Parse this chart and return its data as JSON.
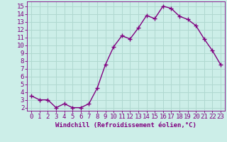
{
  "x": [
    0,
    1,
    2,
    3,
    4,
    5,
    6,
    7,
    8,
    9,
    10,
    11,
    12,
    13,
    14,
    15,
    16,
    17,
    18,
    19,
    20,
    21,
    22,
    23
  ],
  "y": [
    3.5,
    3.0,
    3.0,
    2.0,
    2.5,
    2.0,
    2.0,
    2.5,
    4.5,
    7.5,
    9.8,
    11.2,
    10.8,
    12.2,
    13.8,
    13.4,
    15.0,
    14.7,
    13.7,
    13.3,
    12.5,
    10.8,
    9.3,
    7.5
  ],
  "line_color": "#800080",
  "marker_color": "#800080",
  "bg_color": "#cceee8",
  "grid_color": "#b0d8d0",
  "xlabel": "Windchill (Refroidissement éolien,°C)",
  "ylabel_ticks": [
    2,
    3,
    4,
    5,
    6,
    7,
    8,
    9,
    10,
    11,
    12,
    13,
    14,
    15
  ],
  "ylim": [
    1.6,
    15.6
  ],
  "xlim": [
    -0.5,
    23.5
  ],
  "xtick_labels": [
    "0",
    "1",
    "2",
    "3",
    "4",
    "5",
    "6",
    "7",
    "8",
    "9",
    "10",
    "11",
    "12",
    "13",
    "14",
    "15",
    "16",
    "17",
    "18",
    "19",
    "20",
    "21",
    "22",
    "23"
  ],
  "xlabel_color": "#800080",
  "xlabel_fontsize": 6.5,
  "tick_fontsize": 6.5,
  "line_width": 1.0,
  "marker_size": 2.5
}
